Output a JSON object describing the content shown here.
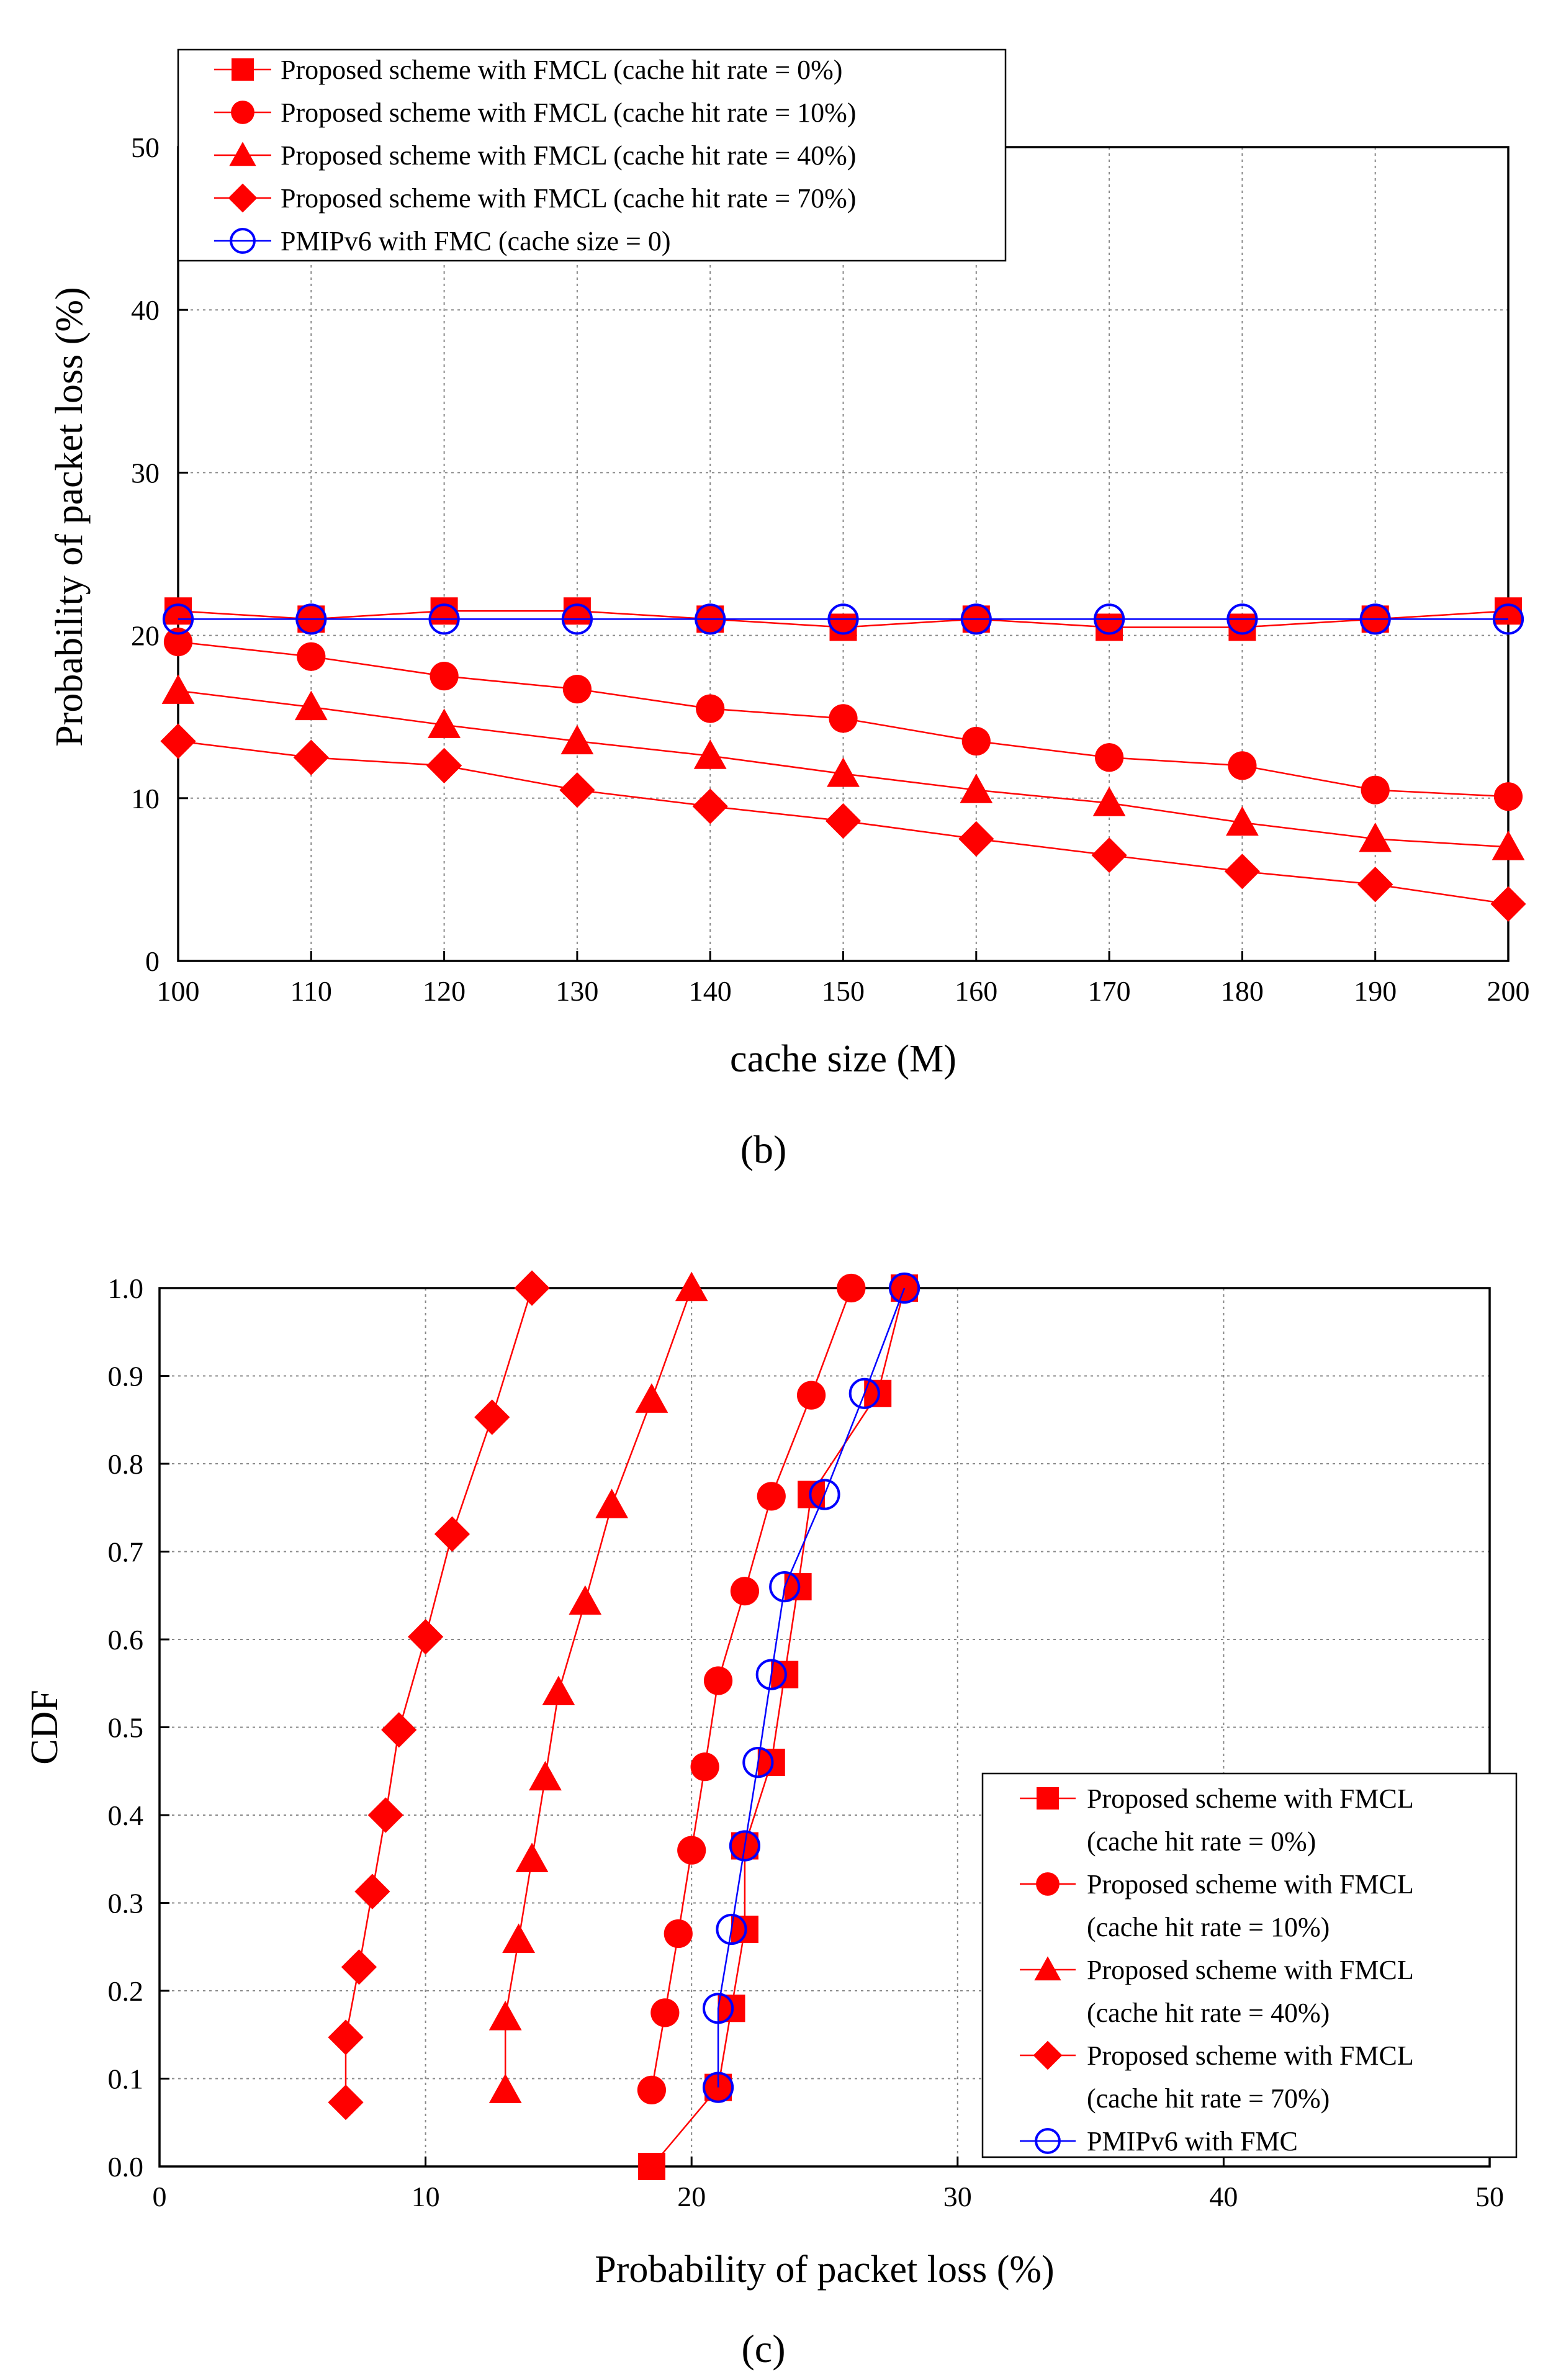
{
  "colors": {
    "red": "#ff0000",
    "blue": "#0000ff",
    "grid": "#888888",
    "axis": "#000000"
  },
  "chart_data": [
    {
      "type": "line",
      "caption": "(b)",
      "xlabel": "cache size (M)",
      "ylabel": "Probability of packet loss (%)",
      "xlim": [
        100,
        200
      ],
      "ylim": [
        0,
        50
      ],
      "xticks": [
        "100",
        "110",
        "120",
        "130",
        "140",
        "150",
        "160",
        "170",
        "180",
        "190",
        "200"
      ],
      "yticks": [
        "0",
        "10",
        "20",
        "30",
        "40",
        "50"
      ],
      "grid": true,
      "legend_position": "top-left",
      "x": [
        100,
        110,
        120,
        130,
        140,
        150,
        160,
        170,
        180,
        190,
        200
      ],
      "series": [
        {
          "name": "Proposed scheme with FMCL (cache hit rate = 0%)",
          "marker": "square",
          "color": "#ff0000",
          "values": [
            21.5,
            21,
            21.5,
            21.5,
            21,
            20.5,
            21,
            20.5,
            20.5,
            21,
            21.5
          ]
        },
        {
          "name": "Proposed scheme with FMCL (cache hit rate = 10%)",
          "marker": "circle",
          "color": "#ff0000",
          "values": [
            19.6,
            18.7,
            17.5,
            16.7,
            15.5,
            14.9,
            13.5,
            12.5,
            12,
            10.5,
            10.1
          ]
        },
        {
          "name": "Proposed scheme with FMCL (cache hit rate = 40%)",
          "marker": "triangle",
          "color": "#ff0000",
          "values": [
            16.6,
            15.6,
            14.5,
            13.5,
            12.6,
            11.5,
            10.5,
            9.7,
            8.5,
            7.5,
            7
          ]
        },
        {
          "name": "Proposed scheme with FMCL (cache hit rate = 70%)",
          "marker": "diamond",
          "color": "#ff0000",
          "values": [
            13.5,
            12.5,
            12,
            10.5,
            9.5,
            8.6,
            7.5,
            6.5,
            5.5,
            4.7,
            3.5
          ]
        },
        {
          "name": "PMIPv6 with FMC (cache size = 0)",
          "marker": "open-circle",
          "color": "#0000ff",
          "values": [
            21,
            21,
            21,
            21,
            21,
            21,
            21,
            21,
            21,
            21,
            21
          ]
        }
      ]
    },
    {
      "type": "line",
      "caption": "(c)",
      "xlabel": "Probability of packet loss (%)",
      "ylabel": "CDF",
      "xlim": [
        0,
        50
      ],
      "ylim": [
        0,
        1
      ],
      "xticks": [
        "0",
        "10",
        "20",
        "30",
        "40",
        "50"
      ],
      "yticks": [
        "0.0",
        "0.1",
        "0.2",
        "0.3",
        "0.4",
        "0.5",
        "0.6",
        "0.7",
        "0.8",
        "0.9",
        "1.0"
      ],
      "grid": true,
      "legend_position": "bottom-right",
      "series": [
        {
          "name": "Proposed scheme with FMCL",
          "name_line2": "(cache hit rate = 0%)",
          "marker": "square",
          "color": "#ff0000",
          "x": [
            18.5,
            21,
            21.5,
            22,
            22,
            23,
            23.5,
            24,
            24.5,
            27,
            28
          ],
          "y": [
            0,
            0.09,
            0.18,
            0.27,
            0.365,
            0.46,
            0.56,
            0.66,
            0.765,
            0.88,
            1.0
          ]
        },
        {
          "name": "Proposed scheme with FMCL",
          "name_line2": "(cache hit rate = 10%)",
          "marker": "circle",
          "color": "#ff0000",
          "x": [
            18.5,
            19,
            19.5,
            20,
            20.5,
            21,
            22,
            23,
            24.5,
            26
          ],
          "y": [
            0.087,
            0.175,
            0.265,
            0.36,
            0.455,
            0.553,
            0.655,
            0.763,
            0.878,
            1.0
          ]
        },
        {
          "name": "Proposed scheme with FMCL",
          "name_line2": "(cache hit rate = 40%)",
          "marker": "triangle",
          "color": "#ff0000",
          "x": [
            13,
            13,
            13.5,
            14,
            14.5,
            15,
            16,
            17,
            18.5,
            20
          ],
          "y": [
            0.087,
            0.17,
            0.258,
            0.35,
            0.443,
            0.54,
            0.643,
            0.753,
            0.873,
            1.0
          ]
        },
        {
          "name": "Proposed scheme with FMCL",
          "name_line2": "(cache hit rate = 70%)",
          "marker": "diamond",
          "color": "#ff0000",
          "x": [
            7,
            7,
            7.5,
            8,
            8.5,
            9,
            10,
            11,
            12.5,
            14
          ],
          "y": [
            0.073,
            0.147,
            0.227,
            0.313,
            0.4,
            0.497,
            0.603,
            0.72,
            0.853,
            1.0
          ]
        },
        {
          "name": "PMIPv6 with FMC",
          "name_line2": "",
          "marker": "open-circle",
          "color": "#0000ff",
          "x": [
            21,
            21,
            21.5,
            22,
            22.5,
            23,
            23.5,
            25,
            26.5,
            28
          ],
          "y": [
            0.09,
            0.18,
            0.27,
            0.365,
            0.46,
            0.56,
            0.66,
            0.765,
            0.88,
            1.0
          ]
        }
      ]
    }
  ]
}
